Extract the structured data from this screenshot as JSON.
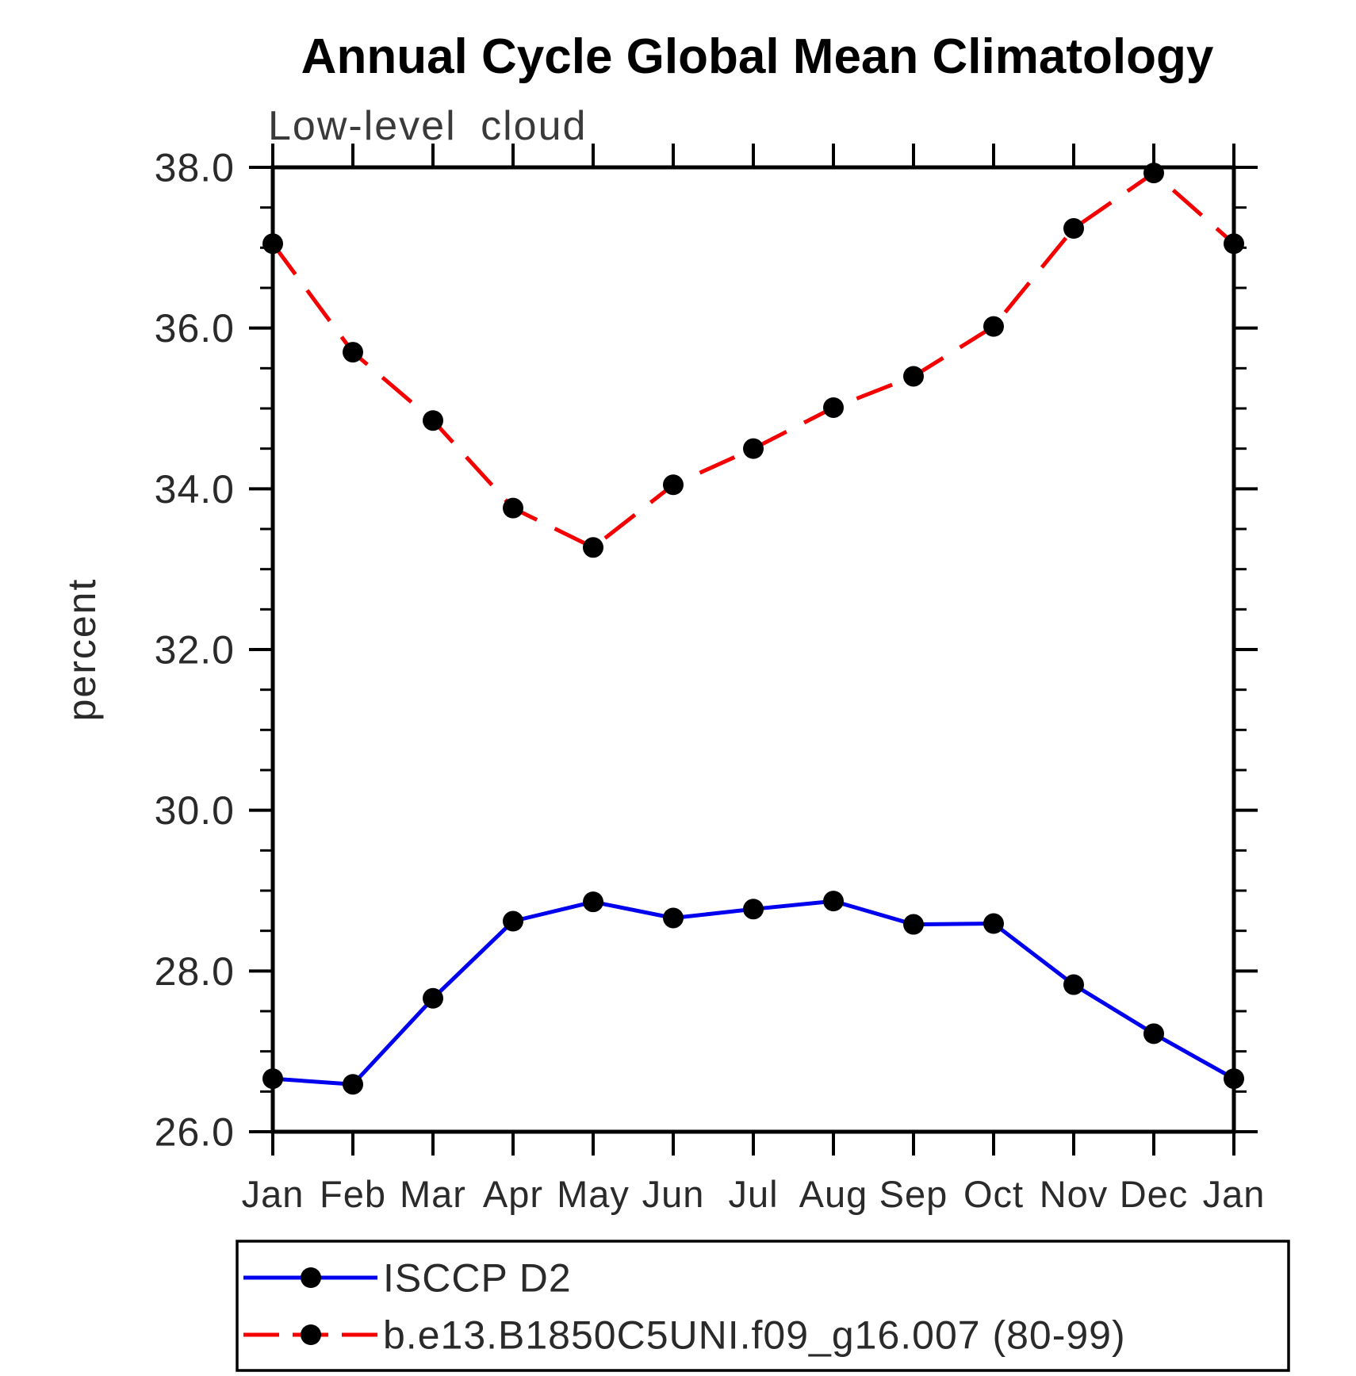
{
  "page": {
    "background": "#ffffff"
  },
  "chart_data": {
    "type": "line",
    "title": "Annual Cycle Global Mean Climatology",
    "subtitle": "Low-level cloud",
    "ylabel": "percent",
    "xlabel": "",
    "categories": [
      "Jan",
      "Feb",
      "Mar",
      "Apr",
      "May",
      "Jun",
      "Jul",
      "Aug",
      "Sep",
      "Oct",
      "Nov",
      "Dec",
      "Jan"
    ],
    "ylim": [
      26.0,
      38.0
    ],
    "ytick_major_interval": 2.0,
    "ytick_minor_interval": 0.5,
    "ytick_labels": [
      "26.0",
      "28.0",
      "30.0",
      "32.0",
      "34.0",
      "36.0",
      "38.0"
    ],
    "grid": false,
    "axis_color": "#000000",
    "marker_color": "#000000",
    "legend_position": "bottom-left-box",
    "series": [
      {
        "name": "ISCCP D2",
        "color": "#0000ee",
        "line_style": "solid",
        "marker": "filled-circle",
        "values": [
          26.66,
          26.59,
          27.66,
          28.62,
          28.86,
          28.66,
          28.77,
          28.87,
          28.58,
          28.59,
          27.83,
          27.22,
          26.66
        ]
      },
      {
        "name": "b.e13.B1850C5UNI.f09_g16.007 (80-99)",
        "color": "#f40000",
        "line_style": "dashed",
        "marker": "filled-circle",
        "values": [
          37.05,
          35.7,
          34.85,
          33.76,
          33.27,
          34.05,
          34.5,
          35.01,
          35.4,
          36.02,
          37.24,
          37.93,
          37.05
        ]
      }
    ]
  }
}
